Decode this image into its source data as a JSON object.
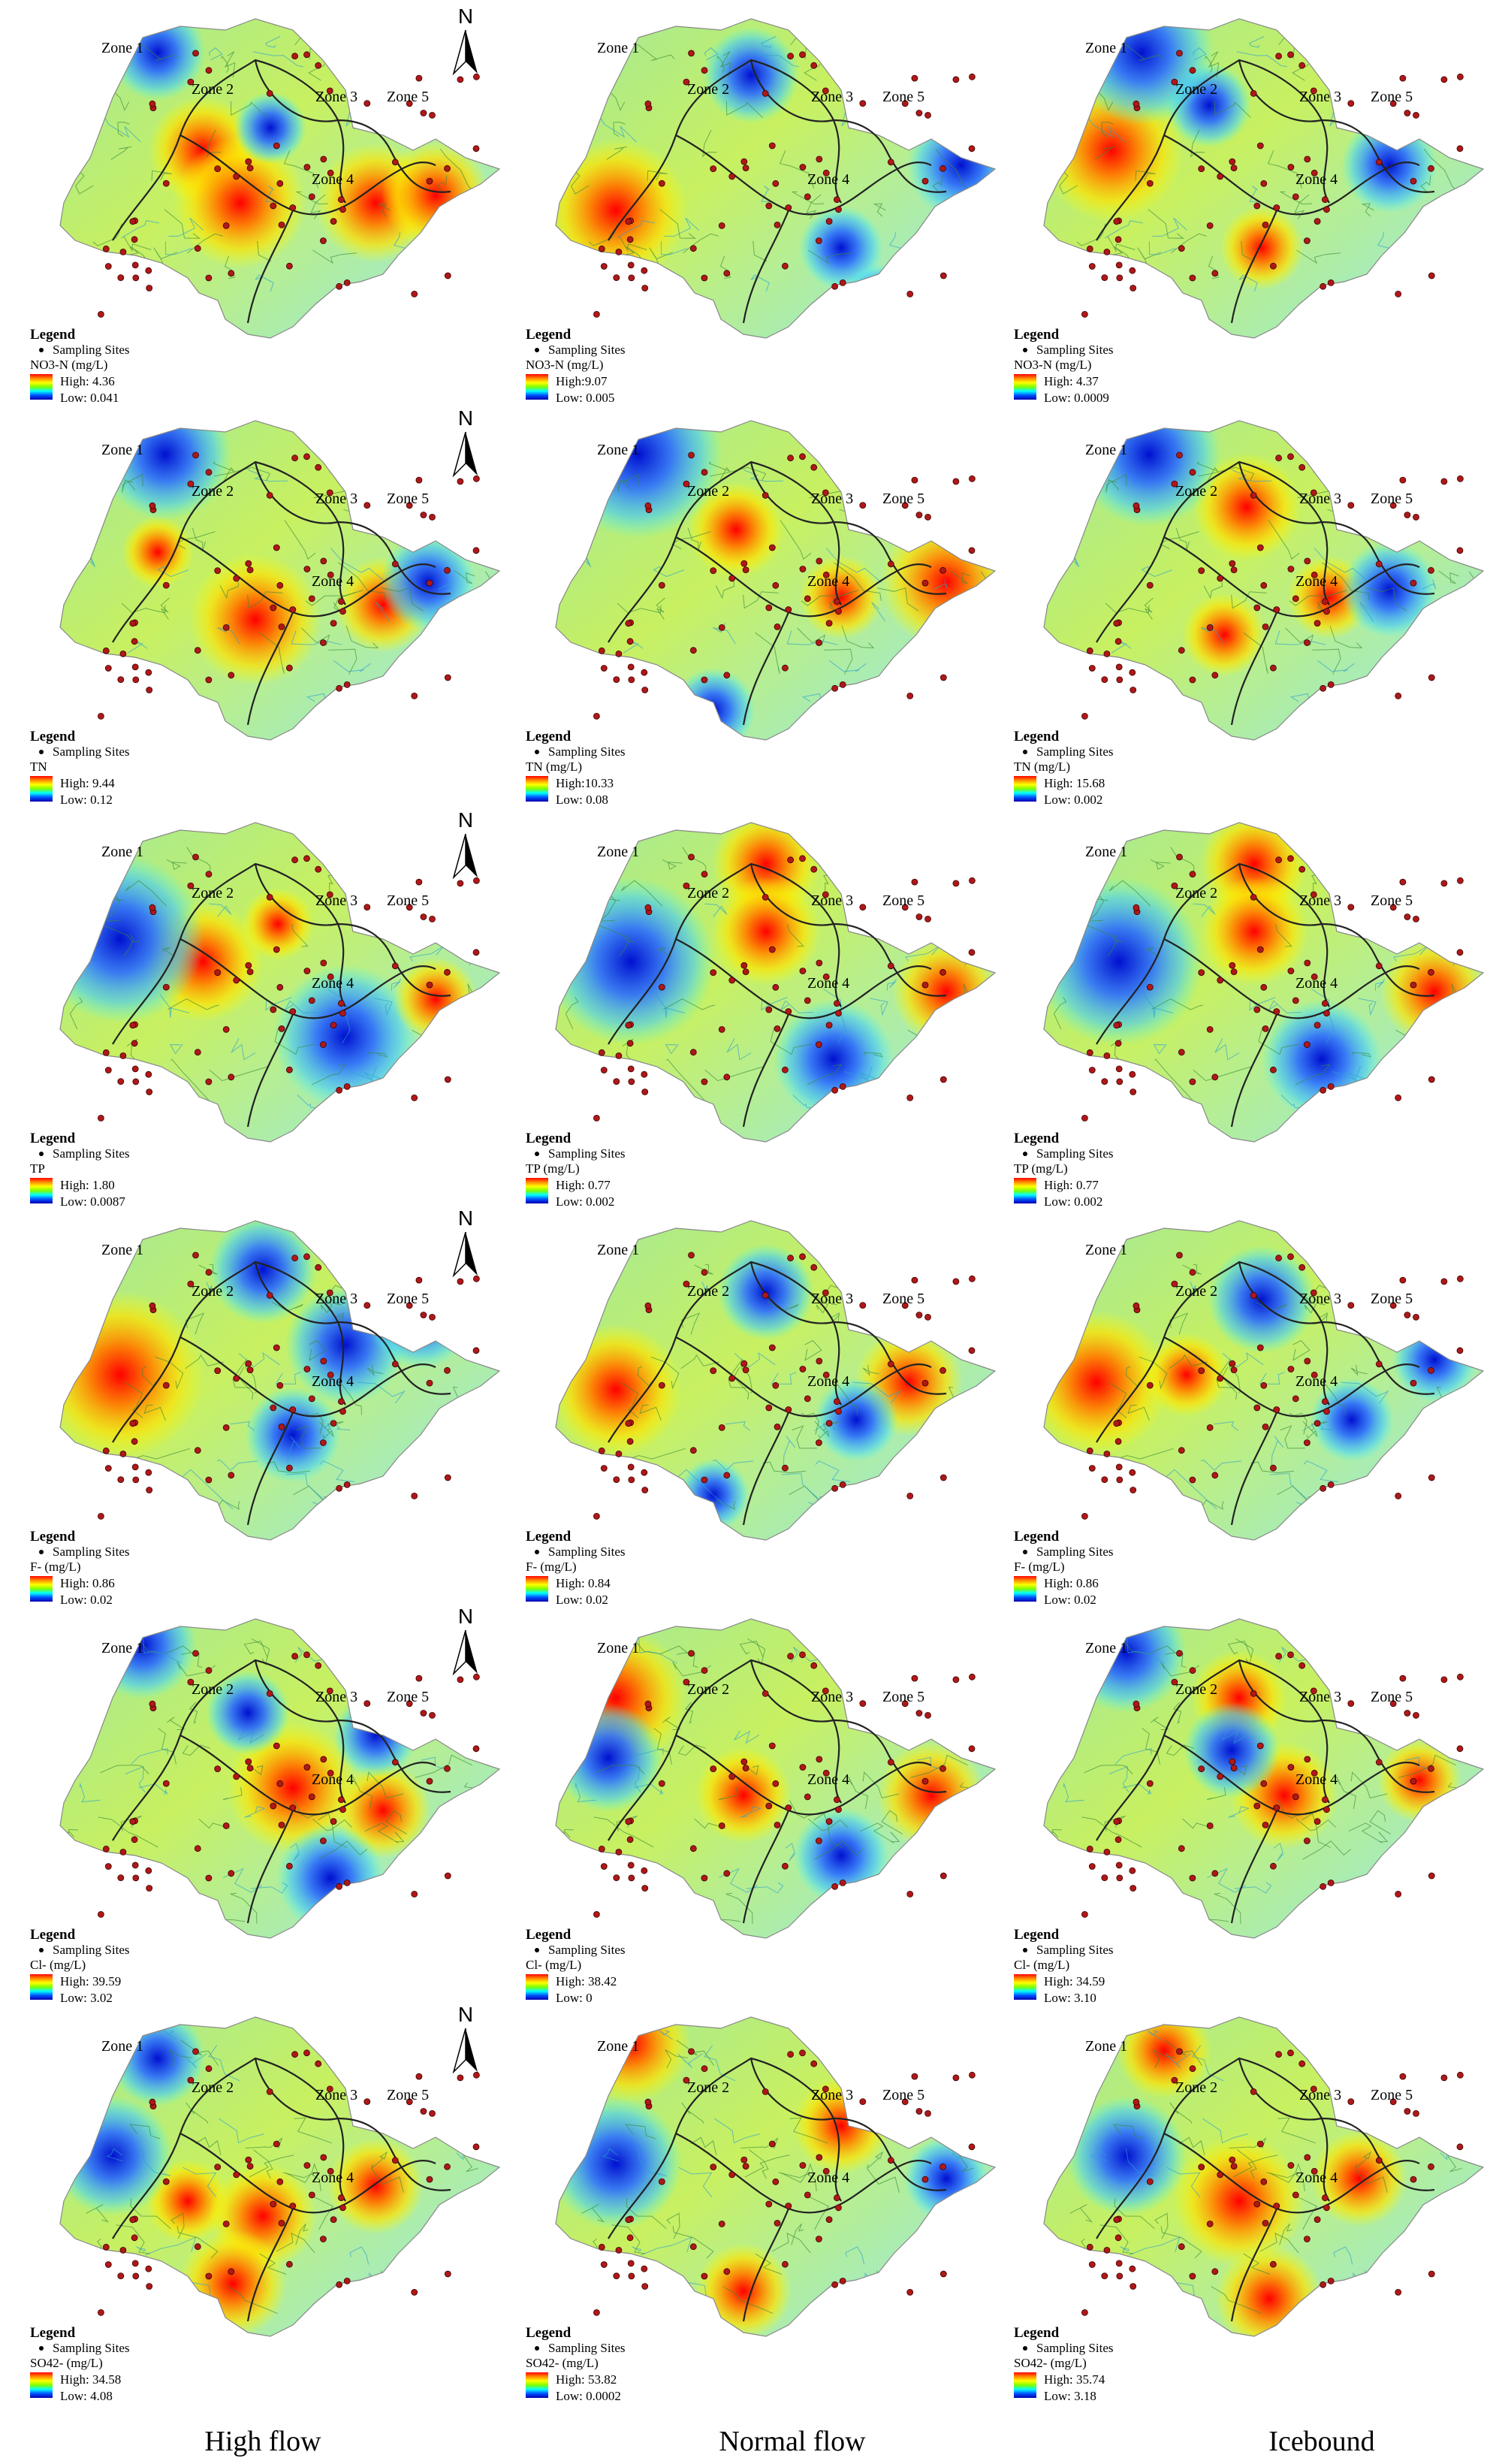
{
  "colors": {
    "high": "#ff0000",
    "mid": "#ffff00",
    "low": "#0000ff",
    "boundary": "#222222",
    "site": "#b01818"
  },
  "legend_title": "Legend",
  "legend_sites": "Sampling Sites",
  "zones": [
    "Zone 1",
    "Zone 2",
    "Zone 3",
    "Zone 4",
    "Zone 5"
  ],
  "north_label": "N",
  "columns": [
    "High flow",
    "Normal flow",
    "Icebound"
  ],
  "rows": [
    {
      "panels": [
        {
          "param": "NO3-N (mg/L)",
          "high": "High: 4.36",
          "low": "Low: 0.041"
        },
        {
          "param": "NO3-N (mg/L)",
          "high": "High:9.07",
          "low": "Low: 0.005"
        },
        {
          "param": "NO3-N (mg/L)",
          "high": "High: 4.37",
          "low": "Low: 0.0009"
        }
      ]
    },
    {
      "panels": [
        {
          "param": "TN",
          "high": "High: 9.44",
          "low": "Low: 0.12"
        },
        {
          "param": "TN (mg/L)",
          "high": "High:10.33",
          "low": "Low: 0.08"
        },
        {
          "param": "TN (mg/L)",
          "high": "High: 15.68",
          "low": "Low: 0.002"
        }
      ]
    },
    {
      "panels": [
        {
          "param": "TP",
          "high": "High: 1.80",
          "low": "Low: 0.0087"
        },
        {
          "param": "TP (mg/L)",
          "high": "High: 0.77",
          "low": "Low: 0.002"
        },
        {
          "param": "TP (mg/L)",
          "high": "High: 0.77",
          "low": "Low: 0.002"
        }
      ]
    },
    {
      "panels": [
        {
          "param": "F- (mg/L)",
          "high": "High: 0.86",
          "low": "Low: 0.02"
        },
        {
          "param": "F- (mg/L)",
          "high": "High: 0.84",
          "low": "Low: 0.02"
        },
        {
          "param": "F- (mg/L)",
          "high": "High: 0.86",
          "low": "Low: 0.02"
        }
      ]
    },
    {
      "panels": [
        {
          "param": "Cl- (mg/L)",
          "high": "High: 39.59",
          "low": "Low: 3.02"
        },
        {
          "param": "Cl- (mg/L)",
          "high": "High: 38.42",
          "low": "Low: 0"
        },
        {
          "param": "Cl- (mg/L)",
          "high": "High: 34.59",
          "low": "Low: 3.10"
        }
      ]
    },
    {
      "panels": [
        {
          "param": "SO42- (mg/L)",
          "high": "High: 34.58",
          "low": "Low: 4.08"
        },
        {
          "param": "SO42- (mg/L)",
          "high": "High: 53.82",
          "low": "Low: 0.0002"
        },
        {
          "param": "SO42- (mg/L)",
          "high": "High: 35.74",
          "low": "Low: 3.18"
        }
      ]
    }
  ]
}
